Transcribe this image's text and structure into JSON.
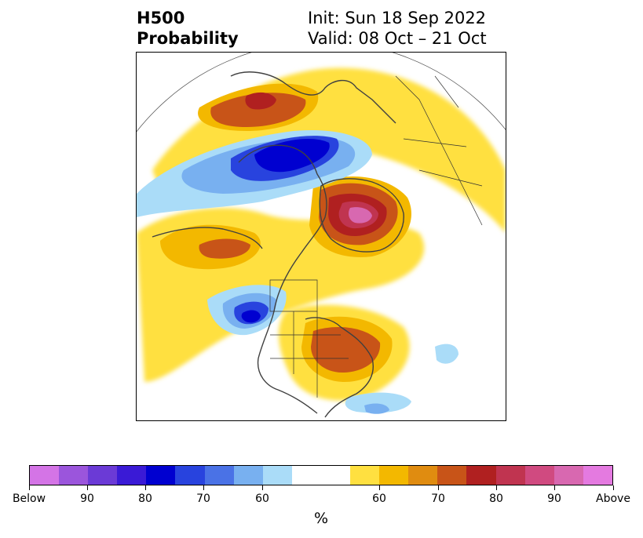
{
  "header": {
    "title_line1": "H500",
    "title_line2": "Probability",
    "init": "Init: Sun 18 Sep 2022",
    "valid": "Valid: 08 Oct – 21 Oct"
  },
  "colorbar": {
    "colors": [
      "#d474e6",
      "#9b55dc",
      "#6b3ad6",
      "#3a1ad6",
      "#0000d0",
      "#2843de",
      "#4a72e6",
      "#78b0f0",
      "#aadcf8",
      "#ffffff",
      "#ffe040",
      "#f3b800",
      "#e08c10",
      "#c85418",
      "#b02020",
      "#c03450",
      "#d04a80",
      "#d868b0",
      "#e47ae0"
    ],
    "weights": [
      1,
      1,
      1,
      1,
      1,
      1,
      1,
      1,
      1,
      2,
      1,
      1,
      1,
      1,
      1,
      1,
      1,
      1,
      1
    ],
    "tick_labels": [
      "Below",
      "90",
      "80",
      "70",
      "60",
      "60",
      "70",
      "80",
      "90",
      "Above"
    ],
    "unit": "%"
  }
}
